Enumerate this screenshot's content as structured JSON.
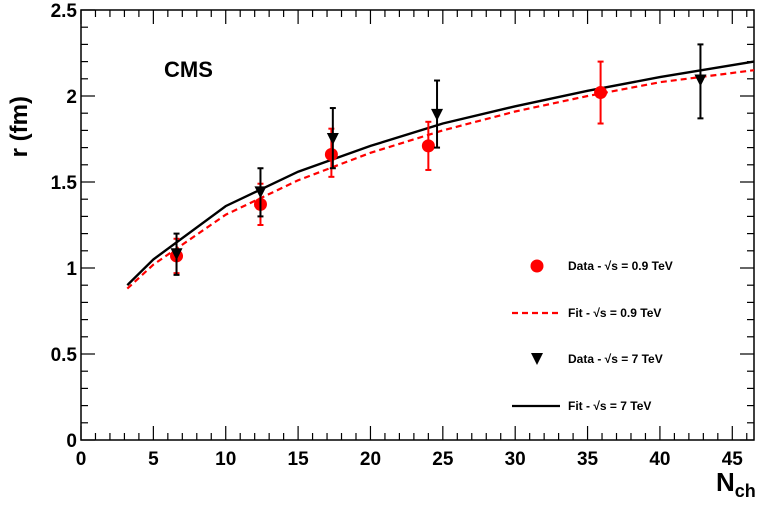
{
  "chart_data": {
    "type": "scatter",
    "title": "",
    "experiment_label": "CMS",
    "xlabel": {
      "main": "N",
      "sub": "ch"
    },
    "ylabel": "r (fm)",
    "xlim": [
      0,
      46.5
    ],
    "ylim": [
      0,
      2.5
    ],
    "xticks": [
      0,
      5,
      10,
      15,
      20,
      25,
      30,
      35,
      40,
      45
    ],
    "yticks": [
      0,
      0.5,
      1,
      1.5,
      2,
      2.5
    ],
    "ytick_labels": [
      "0",
      "0.5",
      "1",
      "1.5",
      "2",
      "2.5"
    ],
    "grid": false,
    "legend_position": "right",
    "series": [
      {
        "name": "Data - √s = 0.9 TeV",
        "kind": "points",
        "marker": "circle",
        "color": "#ff0000",
        "x": [
          6.6,
          12.4,
          17.3,
          24.0,
          35.9
        ],
        "y": [
          1.07,
          1.37,
          1.66,
          1.71,
          2.02
        ],
        "yerr_low": [
          0.1,
          0.12,
          0.13,
          0.14,
          0.18
        ],
        "yerr_high": [
          0.1,
          0.12,
          0.15,
          0.14,
          0.18
        ]
      },
      {
        "name": "Fit - √s = 0.9 TeV",
        "kind": "line",
        "style": "dashed",
        "color": "#ff0000",
        "x": [
          3.2,
          5,
          10,
          15,
          20,
          25,
          30,
          35,
          40,
          46.5
        ],
        "y": [
          0.88,
          1.02,
          1.31,
          1.51,
          1.67,
          1.8,
          1.91,
          2.0,
          2.08,
          2.15
        ]
      },
      {
        "name": "Data - √s = 7 TeV",
        "kind": "points",
        "marker": "triangle-down",
        "color": "#000000",
        "x": [
          6.6,
          12.4,
          17.4,
          24.6,
          42.8
        ],
        "y": [
          1.08,
          1.44,
          1.75,
          1.89,
          2.09
        ],
        "yerr_low": [
          0.12,
          0.14,
          0.17,
          0.19,
          0.22
        ],
        "yerr_high": [
          0.12,
          0.14,
          0.18,
          0.2,
          0.21
        ]
      },
      {
        "name": "Fit - √s = 7 TeV",
        "kind": "line",
        "style": "solid",
        "color": "#000000",
        "x": [
          3.2,
          5,
          10,
          15,
          20,
          25,
          30,
          35,
          40,
          46.5
        ],
        "y": [
          0.9,
          1.05,
          1.36,
          1.56,
          1.71,
          1.84,
          1.94,
          2.03,
          2.11,
          2.2
        ]
      }
    ]
  }
}
